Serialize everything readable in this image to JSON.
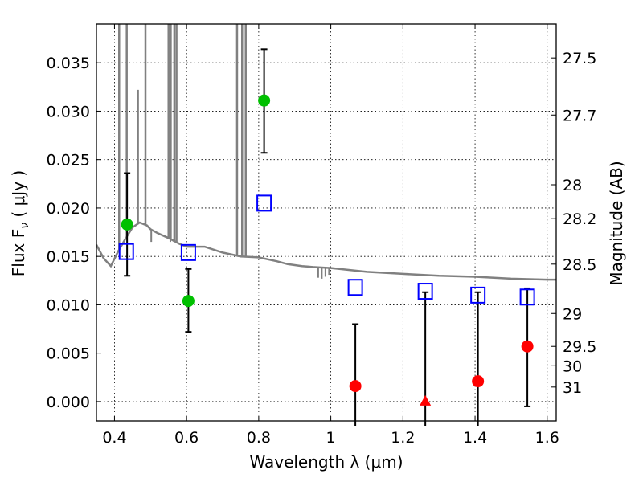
{
  "chart_data": {
    "type": "scatter",
    "xlabel": "Wavelength  λ (μm)",
    "ylabel": "Flux  F",
    "ylabel_subscript": "ν",
    "ylabel_units": "  ( μJy )",
    "ylabel_right": "Magnitude (AB)",
    "xlim": [
      0.35,
      1.625
    ],
    "ylim": [
      -0.002,
      0.039
    ],
    "grid": true,
    "x_ticks": [
      0.4,
      0.6,
      0.8,
      1.0,
      1.2,
      1.4,
      1.6
    ],
    "x_tick_labels": [
      "0.4",
      "0.6",
      "0.8",
      "1",
      "1.2",
      "1.4",
      "1.6"
    ],
    "y_ticks": [
      0.0,
      0.005,
      0.01,
      0.015,
      0.02,
      0.025,
      0.03,
      0.035
    ],
    "y_tick_labels": [
      "0.000",
      "0.005",
      "0.010",
      "0.015",
      "0.020",
      "0.025",
      "0.030",
      "0.035"
    ],
    "right_ticks": [
      {
        "label": "27.5",
        "flux": 0.0355
      },
      {
        "label": "27.7",
        "flux": 0.0296
      },
      {
        "label": "28",
        "flux": 0.0224
      },
      {
        "label": "28.2",
        "flux": 0.0189
      },
      {
        "label": "28.5",
        "flux": 0.0142
      },
      {
        "label": "29",
        "flux": 0.0091
      },
      {
        "label": "29.5",
        "flux": 0.0057
      },
      {
        "label": "30",
        "flux": 0.0037
      },
      {
        "label": "31",
        "flux": 0.0015
      }
    ],
    "model_spectrum": {
      "color": "#808080",
      "continuum": [
        [
          0.35,
          0.0162
        ],
        [
          0.37,
          0.0148
        ],
        [
          0.39,
          0.014
        ],
        [
          0.41,
          0.0155
        ],
        [
          0.43,
          0.0168
        ],
        [
          0.45,
          0.018
        ],
        [
          0.47,
          0.0185
        ],
        [
          0.49,
          0.0182
        ],
        [
          0.5,
          0.0178
        ],
        [
          0.52,
          0.0174
        ],
        [
          0.55,
          0.0169
        ],
        [
          0.58,
          0.0163
        ],
        [
          0.6,
          0.016
        ],
        [
          0.65,
          0.016
        ],
        [
          0.7,
          0.0154
        ],
        [
          0.75,
          0.015
        ],
        [
          0.8,
          0.0149
        ],
        [
          0.85,
          0.0145
        ],
        [
          0.88,
          0.0142
        ],
        [
          0.92,
          0.014
        ],
        [
          0.95,
          0.0139
        ],
        [
          1.0,
          0.0138
        ],
        [
          1.1,
          0.0134
        ],
        [
          1.2,
          0.0132
        ],
        [
          1.3,
          0.013
        ],
        [
          1.4,
          0.0129
        ],
        [
          1.5,
          0.0127
        ],
        [
          1.6,
          0.0126
        ],
        [
          1.625,
          0.0126
        ]
      ],
      "emission_lines": [
        {
          "x": 0.413,
          "peak": 0.04
        },
        {
          "x": 0.434,
          "peak": 0.04
        },
        {
          "x": 0.465,
          "peak": 0.0322
        },
        {
          "x": 0.486,
          "peak": 0.04
        },
        {
          "x": 0.55,
          "peak": 0.04
        },
        {
          "x": 0.556,
          "peak": 0.04
        },
        {
          "x": 0.566,
          "peak": 0.04
        },
        {
          "x": 0.572,
          "peak": 0.04
        },
        {
          "x": 0.74,
          "peak": 0.04
        },
        {
          "x": 0.754,
          "peak": 0.04
        },
        {
          "x": 0.764,
          "peak": 0.04
        }
      ],
      "absorption_lines": [
        {
          "x": 0.502,
          "depth": 0.0165
        },
        {
          "x": 0.555,
          "depth": 0.0165
        },
        {
          "x": 0.565,
          "depth": 0.0165
        },
        {
          "x": 0.74,
          "depth": 0.015
        },
        {
          "x": 0.76,
          "depth": 0.015
        },
        {
          "x": 0.965,
          "depth": 0.0128
        },
        {
          "x": 0.975,
          "depth": 0.0127
        },
        {
          "x": 0.985,
          "depth": 0.0129
        },
        {
          "x": 0.995,
          "depth": 0.0131
        }
      ]
    },
    "series": [
      {
        "marker": "circle",
        "color": "#00c000",
        "points": [
          {
            "x": 0.435,
            "y": 0.0183,
            "err_lo": 0.013,
            "err_hi": 0.0236
          },
          {
            "x": 0.605,
            "y": 0.0104,
            "err_lo": 0.0072,
            "err_hi": 0.0137
          },
          {
            "x": 0.815,
            "y": 0.0311,
            "err_lo": 0.0257,
            "err_hi": 0.0364
          }
        ]
      },
      {
        "marker": "circle",
        "color": "#ff0000",
        "points": [
          {
            "x": 1.068,
            "y": 0.0016,
            "err_lo": -0.0025,
            "err_hi": 0.008
          },
          {
            "x": 1.408,
            "y": 0.0021,
            "err_lo": -0.0025,
            "err_hi": 0.0113
          },
          {
            "x": 1.545,
            "y": 0.0057,
            "err_lo": -0.0005,
            "err_hi": 0.0117
          }
        ]
      },
      {
        "marker": "triangle",
        "color": "#ff0000",
        "points": [
          {
            "x": 1.262,
            "y": 0.0,
            "err_lo": -0.0025,
            "err_hi": 0.0113
          }
        ]
      },
      {
        "marker": "open-square",
        "color": "#0000ff",
        "points": [
          {
            "x": 0.433,
            "y": 0.0155
          },
          {
            "x": 0.605,
            "y": 0.0154
          },
          {
            "x": 0.815,
            "y": 0.0205
          },
          {
            "x": 1.068,
            "y": 0.0118
          },
          {
            "x": 1.262,
            "y": 0.0114
          },
          {
            "x": 1.408,
            "y": 0.011
          },
          {
            "x": 1.545,
            "y": 0.0108
          }
        ]
      }
    ]
  }
}
